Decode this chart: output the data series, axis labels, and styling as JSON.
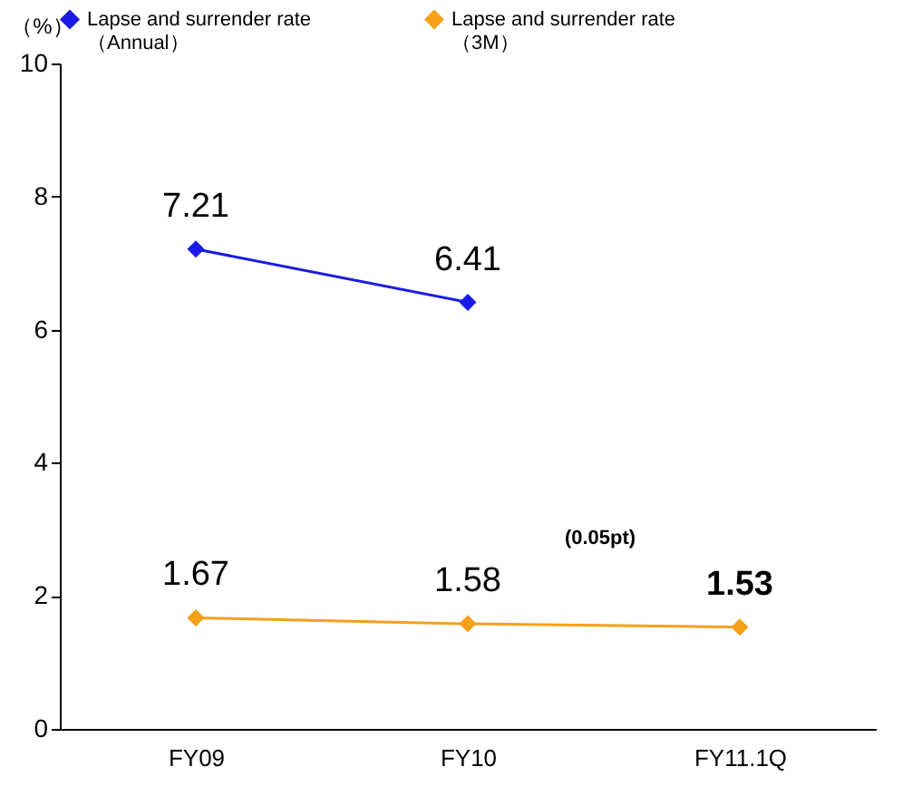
{
  "chart_data": {
    "type": "line",
    "ylabel": "（%）",
    "categories": [
      "FY09",
      "FY10",
      "FY11.1Q"
    ],
    "series": [
      {
        "name": "Lapse and surrender rate\n（Annual）",
        "color": "#1a1ae6",
        "values": [
          7.21,
          6.41,
          null
        ]
      },
      {
        "name": "Lapse and surrender rate\n（3M）",
        "color": "#f5a01a",
        "values": [
          1.67,
          1.58,
          1.53
        ]
      }
    ],
    "ylim": [
      0,
      10
    ],
    "yticks": [
      0,
      2,
      4,
      6,
      8,
      10
    ],
    "data_labels": true,
    "marker": "diamond",
    "line_style": "solid",
    "grid": false,
    "legend": "top",
    "annotations": [
      "(0.05pt)"
    ]
  }
}
